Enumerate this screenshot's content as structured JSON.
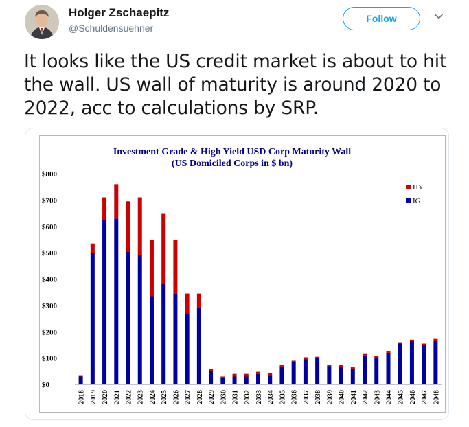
{
  "user": {
    "display_name": "Holger Zschaepitz",
    "handle": "@Schuldensuehner",
    "follow_label": "Follow"
  },
  "tweet": {
    "text": "It looks like the US credit market is about to hit the wall. US wall of maturity is around 2020 to 2022, acc to calculations by SRP."
  },
  "icons": {
    "avatar": "profile-photo",
    "menu": "chevron-down-icon"
  },
  "colors": {
    "accent": "#1da1f2",
    "hy": "#cc0000",
    "ig": "#0000a0",
    "title": "#00008b"
  },
  "chart_data": {
    "type": "bar",
    "stacked": true,
    "title": "Investment Grade & High Yield USD Corp Maturity Wall",
    "subtitle": "(US Domiciled Corps in $ bn)",
    "categories": [
      "2018",
      "2019",
      "2020",
      "2021",
      "2022",
      "2023",
      "2024",
      "2025",
      "2026",
      "2027",
      "2028",
      "2029",
      "2030",
      "2031",
      "2032",
      "2033",
      "2034",
      "2035",
      "2036",
      "2037",
      "2038",
      "2039",
      "2040",
      "2041",
      "2042",
      "2043",
      "2044",
      "2045",
      "2046",
      "2047",
      "2048"
    ],
    "series": [
      {
        "name": "IG",
        "values": [
          30,
          500,
          625,
          630,
          505,
          490,
          335,
          385,
          345,
          270,
          290,
          50,
          25,
          30,
          30,
          40,
          35,
          68,
          85,
          95,
          100,
          70,
          65,
          60,
          110,
          100,
          120,
          155,
          165,
          150,
          165
        ]
      },
      {
        "name": "HY",
        "values": [
          5,
          35,
          85,
          130,
          190,
          220,
          215,
          265,
          205,
          75,
          55,
          10,
          5,
          10,
          10,
          8,
          8,
          5,
          5,
          8,
          5,
          5,
          8,
          5,
          8,
          8,
          5,
          5,
          5,
          5,
          8
        ]
      }
    ],
    "yticks": [
      "$0",
      "$100",
      "$200",
      "$300",
      "$400",
      "$500",
      "$600",
      "$700",
      "$800"
    ],
    "ylim": [
      0,
      800
    ],
    "legend": [
      {
        "label": "HY",
        "color": "#cc0000"
      },
      {
        "label": "IG",
        "color": "#0000a0"
      }
    ],
    "legend_position": "top-right",
    "grid": false
  }
}
